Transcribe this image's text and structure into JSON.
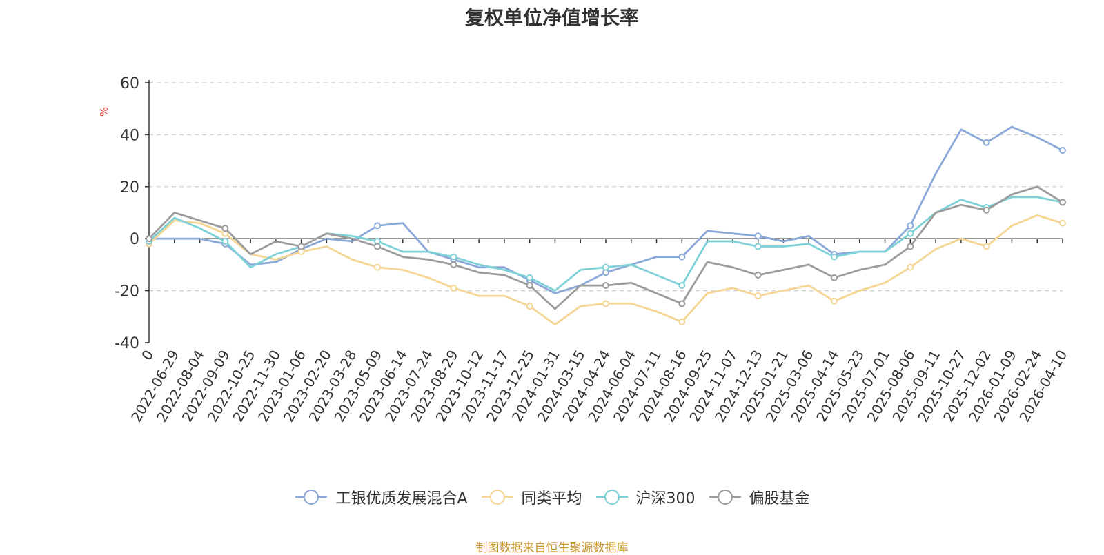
{
  "chart_data": {
    "type": "line",
    "title": "复权单位净值增长率",
    "ylabel": "%",
    "ylim": [
      -40,
      60
    ],
    "yticks": [
      -40,
      -20,
      0,
      20,
      40,
      60
    ],
    "grid": true,
    "legend_position": "bottom",
    "xticks": [
      "0",
      "2022-06-29",
      "2022-08-04",
      "2022-09-09",
      "2022-10-25",
      "2022-11-30",
      "2023-01-06",
      "2023-02-20",
      "2023-03-28",
      "2023-05-09",
      "2023-06-14",
      "2023-07-24",
      "2023-08-29",
      "2023-10-12",
      "2023-11-17",
      "2023-12-25",
      "2024-01-31",
      "2024-03-15",
      "2024-04-24",
      "2024-06-04",
      "2024-07-11",
      "2024-08-16",
      "2024-09-25",
      "2024-11-07",
      "2024-12-13",
      "2025-01-21",
      "2025-03-06",
      "2025-04-14",
      "2025-05-23",
      "2025-07-01",
      "2025-08-06",
      "2025-09-11",
      "2025-10-27",
      "2025-12-02",
      "2026-01-09",
      "2026-02-24",
      "2026-04-10"
    ],
    "x": [
      "0",
      "2022-06-29",
      "2022-08-04",
      "2022-09-09",
      "2022-10-25",
      "2022-11-30",
      "2023-01-06",
      "2023-02-20",
      "2023-03-28",
      "2023-05-09",
      "2023-06-14",
      "2023-07-24",
      "2023-08-29",
      "2023-10-12",
      "2023-11-17",
      "2023-12-25",
      "2024-01-31",
      "2024-03-15",
      "2024-04-24",
      "2024-06-04",
      "2024-07-11",
      "2024-08-16",
      "2024-09-25",
      "2024-11-07",
      "2024-12-13",
      "2025-01-21",
      "2025-03-06",
      "2025-04-14",
      "2025-05-23",
      "2025-07-01",
      "2025-08-06",
      "2025-09-11",
      "2025-10-27",
      "2025-12-02",
      "2026-01-09",
      "2026-02-24",
      "2026-04-10"
    ],
    "series": [
      {
        "name": "工银优质发展混合A",
        "color": "#8aa8d8",
        "values": [
          0,
          0,
          0,
          -2,
          -10,
          -9,
          -4,
          0,
          -1,
          5,
          6,
          -5,
          -8,
          -11,
          -11,
          -16,
          -21,
          -18,
          -13,
          -10,
          -7,
          -7,
          3,
          2,
          1,
          -1,
          1,
          -6,
          -5,
          -5,
          5,
          25,
          42,
          37,
          43,
          39,
          34
        ]
      },
      {
        "name": "同类平均",
        "color": "#f5d594",
        "values": [
          -2,
          7,
          6,
          2,
          -6,
          -8,
          -5,
          -3,
          -8,
          -11,
          -12,
          -15,
          -19,
          -22,
          -22,
          -26,
          -33,
          -26,
          -25,
          -25,
          -28,
          -32,
          -21,
          -19,
          -22,
          -20,
          -18,
          -24,
          -20,
          -17,
          -11,
          -4,
          0,
          -3,
          5,
          9,
          6
        ]
      },
      {
        "name": "沪深300",
        "color": "#7fd1d8",
        "values": [
          -1,
          8,
          4,
          -1,
          -11,
          -6,
          -3,
          2,
          1,
          -1,
          -5,
          -5,
          -7,
          -10,
          -12,
          -15,
          -20,
          -12,
          -11,
          -10,
          -14,
          -18,
          -1,
          -1,
          -3,
          -3,
          -2,
          -7,
          -5,
          -5,
          2,
          10,
          15,
          12,
          16,
          16,
          14
        ]
      },
      {
        "name": "偏股基金",
        "color": "#9c9c9c",
        "values": [
          0,
          10,
          7,
          4,
          -6,
          -1,
          -3,
          2,
          0,
          -3,
          -7,
          -8,
          -10,
          -13,
          -14,
          -18,
          -27,
          -18,
          -18,
          -17,
          -21,
          -25,
          -9,
          -11,
          -14,
          -12,
          -10,
          -15,
          -12,
          -10,
          -3,
          10,
          13,
          11,
          17,
          20,
          14
        ]
      }
    ]
  },
  "footer": {
    "source": "制图数据来自恒生聚源数据库"
  }
}
